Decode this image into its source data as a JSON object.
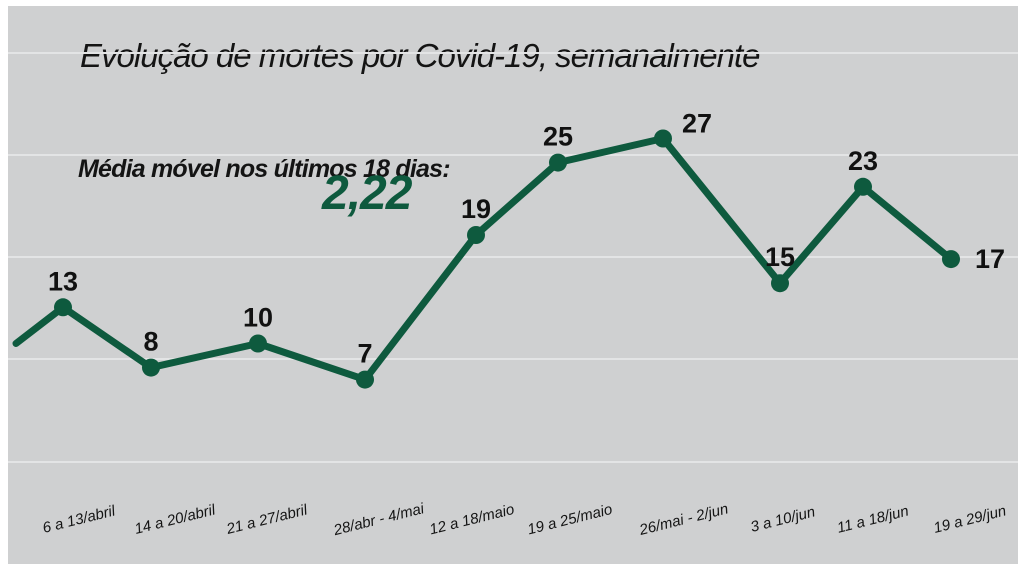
{
  "chart_data": {
    "type": "line",
    "title": "Evolução de mortes por Covid-19, semanalmente",
    "annotation_label": "Média móvel nos últimos 18 dias:",
    "annotation_value": "2,22",
    "categories": [
      "6 a 13/abril",
      "14 a 20/abril",
      "21 a 27/abril",
      "28/abr - 4/mai",
      "12 a 18/maio",
      "19 a 25/maio",
      "26/mai - 2/jun",
      "3 a 10/jun",
      "11 a 18/jun",
      "19 a 29/jun"
    ],
    "values": [
      13,
      8,
      10,
      7,
      19,
      25,
      27,
      15,
      23,
      17
    ],
    "data_labels": [
      "13",
      "8",
      "10",
      "7",
      "19",
      "25",
      "27",
      "15",
      "23",
      "17"
    ],
    "ylim": [
      0,
      37
    ],
    "grid": true,
    "line_color": "#0e5a3e",
    "background_color": "#cfd0d1"
  }
}
